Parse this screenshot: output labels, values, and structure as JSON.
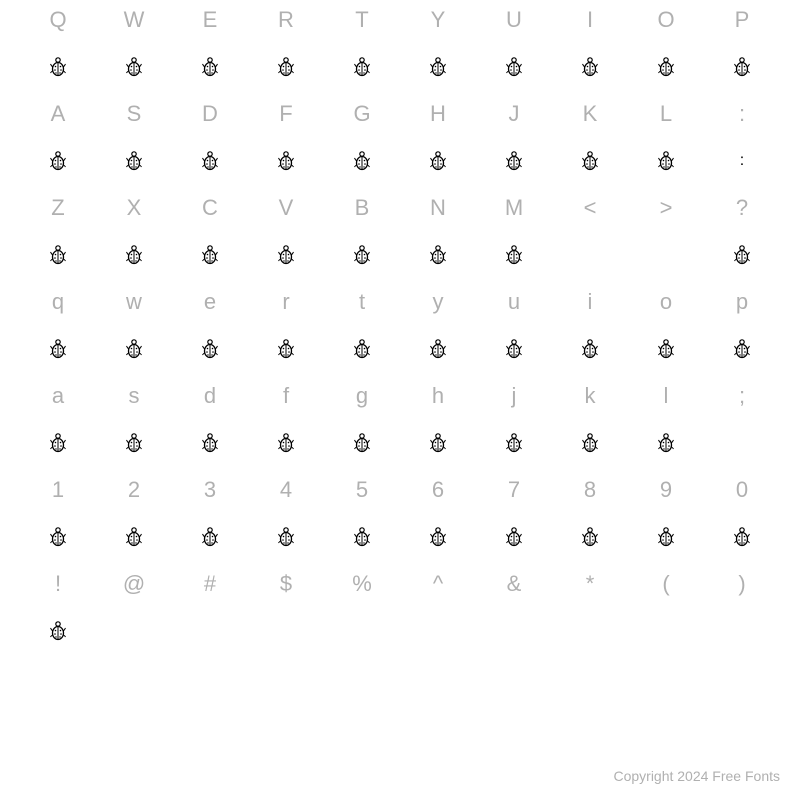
{
  "footer": "Copyright 2024 Free Fonts",
  "rows": [
    {
      "chars": [
        "Q",
        "W",
        "E",
        "R",
        "T",
        "Y",
        "U",
        "I",
        "O",
        "P"
      ],
      "glyphs": [
        "beetle",
        "beetle",
        "beetle",
        "beetle",
        "beetle",
        "beetle",
        "beetle",
        "beetle",
        "beetle",
        "beetle"
      ]
    },
    {
      "chars": [
        "A",
        "S",
        "D",
        "F",
        "G",
        "H",
        "J",
        "K",
        "L",
        ":"
      ],
      "glyphs": [
        "beetle",
        "beetle",
        "beetle",
        "beetle",
        "beetle",
        "beetle",
        "beetle",
        "beetle",
        "beetle",
        "colon"
      ]
    },
    {
      "chars": [
        "Z",
        "X",
        "C",
        "V",
        "B",
        "N",
        "M",
        "<",
        ">",
        "?"
      ],
      "glyphs": [
        "beetle",
        "beetle",
        "beetle",
        "beetle",
        "beetle",
        "beetle",
        "beetle",
        "empty",
        "empty",
        "beetle"
      ]
    },
    {
      "chars": [
        "q",
        "w",
        "e",
        "r",
        "t",
        "y",
        "u",
        "i",
        "o",
        "p"
      ],
      "glyphs": [
        "beetle",
        "beetle",
        "beetle",
        "beetle",
        "beetle",
        "beetle",
        "beetle",
        "beetle",
        "beetle",
        "beetle"
      ]
    },
    {
      "chars": [
        "a",
        "s",
        "d",
        "f",
        "g",
        "h",
        "j",
        "k",
        "l",
        ";"
      ],
      "glyphs": [
        "beetle",
        "beetle",
        "beetle",
        "beetle",
        "beetle",
        "beetle",
        "beetle",
        "beetle",
        "beetle",
        "empty"
      ]
    },
    {
      "chars": [
        "1",
        "2",
        "3",
        "4",
        "5",
        "6",
        "7",
        "8",
        "9",
        "0"
      ],
      "glyphs": [
        "beetle",
        "beetle",
        "beetle",
        "beetle",
        "beetle",
        "beetle",
        "beetle",
        "beetle",
        "beetle",
        "beetle"
      ]
    },
    {
      "chars": [
        "!",
        "@",
        "#",
        "$",
        "%",
        "^",
        "&",
        "*",
        "(",
        ")"
      ],
      "glyphs": [
        "beetle",
        "empty",
        "empty",
        "empty",
        "empty",
        "empty",
        "empty",
        "empty",
        "empty",
        "empty"
      ]
    }
  ],
  "colors": {
    "label": "#b0b0b0",
    "glyph": "#000000",
    "background": "#ffffff"
  }
}
